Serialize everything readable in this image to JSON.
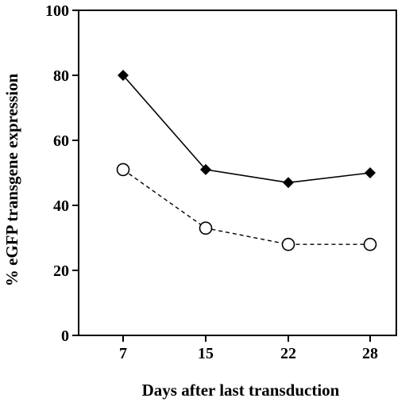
{
  "chart_data": {
    "type": "line",
    "xlabel": "Days after last transduction",
    "ylabel": "% eGFP transgene expression",
    "x_categories": [
      "7",
      "15",
      "22",
      "28"
    ],
    "ylim": [
      0,
      100
    ],
    "yticks": [
      "0",
      "20",
      "40",
      "60",
      "80",
      "100"
    ],
    "grid": false,
    "series": [
      {
        "values": [
          80,
          51,
          47,
          50
        ],
        "marker": "filled-diamond",
        "line_style": "solid",
        "color": "#000000"
      },
      {
        "values": [
          51,
          33,
          28,
          28
        ],
        "marker": "open-circle",
        "line_style": "dashed",
        "color": "#000000"
      }
    ]
  }
}
